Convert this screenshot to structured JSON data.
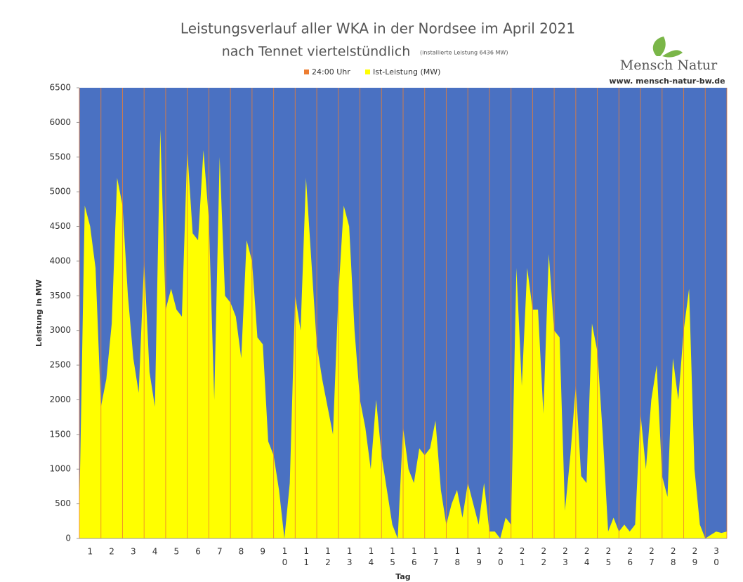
{
  "chart_data": {
    "type": "area",
    "title": "Leistungsverlauf aller WKA in der Nordsee im April 2021",
    "subtitle": "nach Tennet viertelstündlich",
    "subtitle_note": "(installierte Leistung 6436 MW)",
    "logo_text": "Mensch Natur",
    "logo_url": "www. mensch-natur-bw.de",
    "y_label": "Leistung in MW",
    "x_label": "Tag",
    "categories": [
      "1",
      "2",
      "3",
      "4",
      "5",
      "6",
      "7",
      "8",
      "9",
      "10",
      "11",
      "12",
      "13",
      "14",
      "15",
      "16",
      "17",
      "18",
      "19",
      "20",
      "21",
      "22",
      "23",
      "24",
      "25",
      "26",
      "27",
      "28",
      "29",
      "30"
    ],
    "x": [
      0,
      0.25,
      0.5,
      0.75,
      1,
      1.25,
      1.5,
      1.75,
      2,
      2.25,
      2.5,
      2.75,
      3,
      3.25,
      3.5,
      3.75,
      4,
      4.25,
      4.5,
      4.75,
      5,
      5.25,
      5.5,
      5.75,
      6,
      6.25,
      6.5,
      6.75,
      7,
      7.25,
      7.5,
      7.75,
      8,
      8.25,
      8.5,
      8.75,
      9,
      9.25,
      9.5,
      9.75,
      10,
      10.25,
      10.5,
      10.75,
      11,
      11.25,
      11.5,
      11.75,
      12,
      12.25,
      12.5,
      12.75,
      13,
      13.25,
      13.5,
      13.75,
      14,
      14.25,
      14.5,
      14.75,
      15,
      15.25,
      15.5,
      15.75,
      16,
      16.25,
      16.5,
      16.75,
      17,
      17.25,
      17.5,
      17.75,
      18,
      18.25,
      18.5,
      18.75,
      19,
      19.25,
      19.5,
      19.75,
      20,
      20.25,
      20.5,
      20.75,
      21,
      21.25,
      21.5,
      21.75,
      22,
      22.25,
      22.5,
      22.75,
      23,
      23.25,
      23.5,
      23.75,
      24,
      24.25,
      24.5,
      24.75,
      25,
      25.25,
      25.5,
      25.75,
      26,
      26.25,
      26.5,
      26.75,
      27,
      27.25,
      27.5,
      27.75,
      28,
      28.25,
      28.5,
      28.75,
      29,
      29.25,
      29.5,
      29.75,
      30
    ],
    "series": [
      {
        "name": "Ist-Leistung (MW)",
        "color": "#ffff00",
        "values": [
          400,
          4800,
          4500,
          3900,
          1900,
          2300,
          3100,
          5200,
          4800,
          3500,
          2600,
          2100,
          4000,
          2400,
          1900,
          5900,
          3300,
          3600,
          3300,
          3200,
          5600,
          4400,
          4300,
          5600,
          4600,
          2000,
          5500,
          3500,
          3400,
          3200,
          2600,
          4300,
          4000,
          2900,
          2800,
          1400,
          1200,
          700,
          0,
          800,
          3500,
          3000,
          5200,
          4000,
          2800,
          2300,
          1900,
          1500,
          3500,
          4800,
          4500,
          3000,
          2000,
          1600,
          1000,
          2000,
          1200,
          700,
          200,
          0,
          1600,
          1000,
          800,
          1300,
          1200,
          1300,
          1700,
          700,
          200,
          500,
          700,
          300,
          800,
          500,
          200,
          800,
          100,
          100,
          0,
          300,
          200,
          3900,
          2200,
          3900,
          3300,
          3300,
          1800,
          4100,
          3000,
          2900,
          400,
          1200,
          2200,
          900,
          800,
          3100,
          2700,
          1500,
          100,
          300,
          100,
          200,
          100,
          200,
          1800,
          1000,
          2000,
          2500,
          900,
          600,
          2600,
          2000,
          3000,
          3600,
          1000,
          200,
          0,
          50,
          100,
          80,
          100
        ]
      }
    ],
    "marker_series": {
      "name": "24:00 Uhr",
      "color": "#ed7d31"
    },
    "plot_background": "#4a71c2",
    "xlim": [
      0,
      30
    ],
    "xticks": [
      0,
      1,
      2,
      3,
      4,
      5,
      6,
      7,
      8,
      9,
      10,
      11,
      12,
      13,
      14,
      15,
      16,
      17,
      18,
      19,
      20,
      21,
      22,
      23,
      24,
      25,
      26,
      27,
      28,
      29,
      30
    ],
    "ylim": [
      0,
      6500
    ],
    "yticks": [
      0,
      500,
      1000,
      1500,
      2000,
      2500,
      3000,
      3500,
      4000,
      4500,
      5000,
      5500,
      6000,
      6500
    ]
  }
}
